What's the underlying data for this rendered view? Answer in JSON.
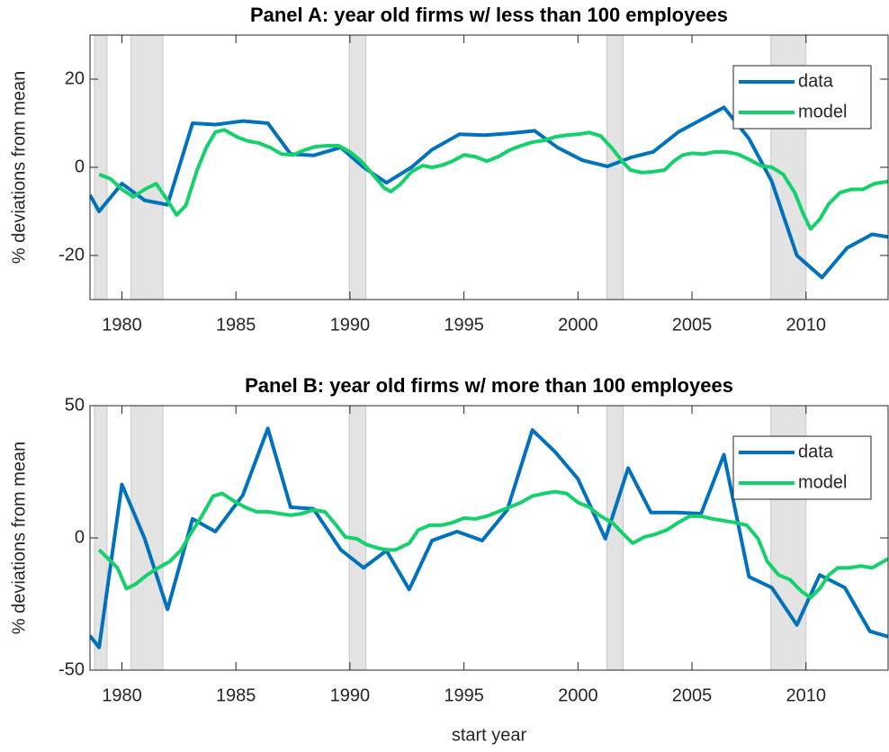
{
  "chart_data": [
    {
      "type": "line",
      "title": "Panel A: year old firms w/ less than 100 employees",
      "ylabel": "% deviations from mean",
      "xlim": [
        1978.6,
        2013.6
      ],
      "xticks": [
        1980,
        1985,
        1990,
        1995,
        2000,
        2005,
        2010
      ],
      "ylim": [
        -30,
        30
      ],
      "yticks": [
        -20,
        0,
        20
      ],
      "legend": "upper right",
      "shaded_regions": [
        [
          1978.8,
          1979.35
        ],
        [
          1980.4,
          1981.8
        ],
        [
          1989.97,
          1990.7
        ],
        [
          2001.27,
          2001.98
        ],
        [
          2008.46,
          2010.0
        ]
      ],
      "shade_color": "#e3e3e3",
      "series": [
        {
          "name": "data",
          "color": "#0072bd",
          "x": [
            1978.6,
            1979.0,
            1980.0,
            1981.0,
            1982.0,
            1983.1,
            1984.1,
            1985.3,
            1986.4,
            1987.4,
            1988.4,
            1989.6,
            1990.6,
            1991.6,
            1992.7,
            1993.6,
            1994.8,
            1995.9,
            1997.0,
            1998.1,
            1999.1,
            2000.2,
            2001.3,
            2002.3,
            2003.3,
            2004.4,
            2005.4,
            2006.4,
            2007.5,
            2008.5,
            2009.6,
            2010.7,
            2011.8,
            2012.9,
            2013.6
          ],
          "values": [
            -6.3,
            -10,
            -3.7,
            -7.5,
            -8.5,
            10,
            9.7,
            10.5,
            10,
            3,
            2.7,
            4.5,
            0,
            -3.5,
            0,
            4,
            7.5,
            7.3,
            7.7,
            8.3,
            4.5,
            1.6,
            0.2,
            2.2,
            3.5,
            8,
            10.8,
            13.6,
            6.5,
            -3.2,
            -20,
            -25,
            -18.3,
            -15.2,
            -15.8
          ]
        },
        {
          "name": "model",
          "color": "#14d16b",
          "x": [
            1979.0,
            1979.5,
            1980.0,
            1980.5,
            1981.0,
            1981.5,
            1981.9,
            1982.4,
            1982.8,
            1983.3,
            1983.7,
            1984.1,
            1984.5,
            1985.0,
            1985.5,
            1986.0,
            1986.5,
            1987.0,
            1987.5,
            1988.0,
            1988.5,
            1989.0,
            1989.5,
            1990.0,
            1990.5,
            1991.0,
            1991.5,
            1991.8,
            1992.2,
            1992.7,
            1993.2,
            1993.6,
            1994.0,
            1994.5,
            1995.0,
            1995.5,
            1996.0,
            1996.5,
            1997.0,
            1997.5,
            1998.0,
            1998.5,
            1999.0,
            1999.5,
            2000.0,
            2000.5,
            2001.0,
            2001.5,
            2002.0,
            2002.3,
            2002.8,
            2003.3,
            2003.8,
            2004.2,
            2004.6,
            2005.0,
            2005.5,
            2006.0,
            2006.5,
            2007.0,
            2007.5,
            2008.0,
            2008.5,
            2009.0,
            2009.5,
            2009.9,
            2010.2,
            2010.6,
            2011.0,
            2011.5,
            2012.0,
            2012.5,
            2013.0,
            2013.6
          ],
          "values": [
            -1.6,
            -2.6,
            -5,
            -6.7,
            -5,
            -3.7,
            -6.7,
            -10.8,
            -8.7,
            -0.6,
            4.5,
            8,
            8.5,
            7,
            6,
            5.5,
            4.5,
            3,
            2.8,
            3.9,
            4.7,
            4.9,
            4.9,
            3.5,
            1.4,
            -1.6,
            -4.7,
            -5.5,
            -3.9,
            -1,
            0.4,
            0,
            0.4,
            1.4,
            2.8,
            2.4,
            1.4,
            2.4,
            3.9,
            4.9,
            5.7,
            6.1,
            6.9,
            7.3,
            7.5,
            7.9,
            7.1,
            4.3,
            1,
            -0.6,
            -1.2,
            -1,
            -0.6,
            1.4,
            2.8,
            3.2,
            3,
            3.5,
            3.5,
            3,
            1.8,
            0.4,
            0,
            -1.6,
            -5.7,
            -10.8,
            -14,
            -11.8,
            -8.3,
            -5.7,
            -5,
            -5,
            -3.7,
            -3.2
          ]
        }
      ]
    },
    {
      "type": "line",
      "title": "Panel B: year old firms w/ more than 100 employees",
      "ylabel": "% deviations from mean",
      "xlabel": "start year",
      "xlim": [
        1978.6,
        2013.6
      ],
      "xticks": [
        1980,
        1985,
        1990,
        1995,
        2000,
        2005,
        2010
      ],
      "ylim": [
        -50,
        50
      ],
      "yticks": [
        -50,
        0,
        50
      ],
      "legend": "upper right",
      "shaded_regions": [
        [
          1978.8,
          1979.35
        ],
        [
          1980.4,
          1981.8
        ],
        [
          1989.97,
          1990.7
        ],
        [
          2001.27,
          2001.98
        ],
        [
          2008.46,
          2010.0
        ]
      ],
      "shade_color": "#e3e3e3",
      "series": [
        {
          "name": "data",
          "color": "#0072bd",
          "x": [
            1978.6,
            1979.0,
            1980.0,
            1981.0,
            1982.0,
            1983.1,
            1984.1,
            1985.3,
            1986.4,
            1987.4,
            1988.4,
            1989.6,
            1990.6,
            1991.6,
            1992.6,
            1993.6,
            1994.7,
            1995.8,
            1996.9,
            1998.0,
            1999.0,
            2000.0,
            2001.2,
            2002.2,
            2003.2,
            2004.3,
            2005.4,
            2006.4,
            2007.5,
            2008.5,
            2009.6,
            2010.6,
            2011.7,
            2012.8,
            2013.6
          ],
          "values": [
            -37,
            -41.4,
            20.2,
            -0.3,
            -27,
            7.2,
            2.4,
            16.1,
            41.4,
            11.6,
            11,
            -4.5,
            -11.3,
            -4.8,
            -19.5,
            -1,
            2.4,
            -1,
            10.6,
            40.8,
            32.5,
            22.3,
            -0.3,
            26.4,
            9.6,
            9.6,
            9.2,
            31.5,
            -14.7,
            -18.8,
            -32.9,
            -14,
            -18.8,
            -35.3,
            -37.3
          ]
        },
        {
          "name": "model",
          "color": "#14d16b",
          "x": [
            1979.0,
            1979.4,
            1979.8,
            1980.2,
            1980.6,
            1981.1,
            1981.6,
            1982.1,
            1982.6,
            1983.0,
            1983.5,
            1984.0,
            1984.4,
            1984.9,
            1985.4,
            1985.9,
            1986.4,
            1986.9,
            1987.4,
            1987.9,
            1988.4,
            1988.9,
            1989.4,
            1989.8,
            1990.3,
            1990.7,
            1991.2,
            1991.6,
            1992.0,
            1992.6,
            1993.0,
            1993.5,
            1994.0,
            1994.5,
            1995.0,
            1995.5,
            1996.0,
            1996.5,
            1997.0,
            1997.5,
            1998.0,
            1998.5,
            1999.0,
            1999.5,
            2000.0,
            2000.5,
            2001.0,
            2001.5,
            2002.0,
            2002.4,
            2002.9,
            2003.4,
            2003.9,
            2004.4,
            2004.9,
            2005.4,
            2005.9,
            2006.4,
            2006.9,
            2007.4,
            2007.9,
            2008.3,
            2008.8,
            2009.3,
            2009.8,
            2010.2,
            2010.6,
            2011.0,
            2011.4,
            2011.9,
            2012.4,
            2012.9,
            2013.6
          ],
          "values": [
            -4.5,
            -7.9,
            -11.3,
            -19.2,
            -17.5,
            -14,
            -11.3,
            -8.9,
            -4.5,
            1.4,
            8.2,
            15.8,
            16.8,
            14,
            11.6,
            9.9,
            9.9,
            9.2,
            8.6,
            9.2,
            10.6,
            9.9,
            4.8,
            0.3,
            -0.3,
            -2.4,
            -3.8,
            -4.5,
            -4.5,
            -2,
            3,
            4.8,
            4.8,
            5.8,
            7.5,
            7.2,
            8.2,
            9.9,
            11.6,
            13.4,
            15.8,
            16.8,
            17.5,
            16.8,
            13.4,
            11.6,
            8.2,
            5.8,
            1.4,
            -2,
            0.3,
            1.4,
            3,
            5.8,
            8.2,
            8.2,
            7.2,
            6.5,
            5.8,
            4.8,
            -0.3,
            -8.9,
            -14,
            -15.8,
            -20.2,
            -22.6,
            -19.2,
            -14,
            -11.3,
            -11.3,
            -10.6,
            -11.3,
            -7.9
          ]
        }
      ]
    }
  ]
}
